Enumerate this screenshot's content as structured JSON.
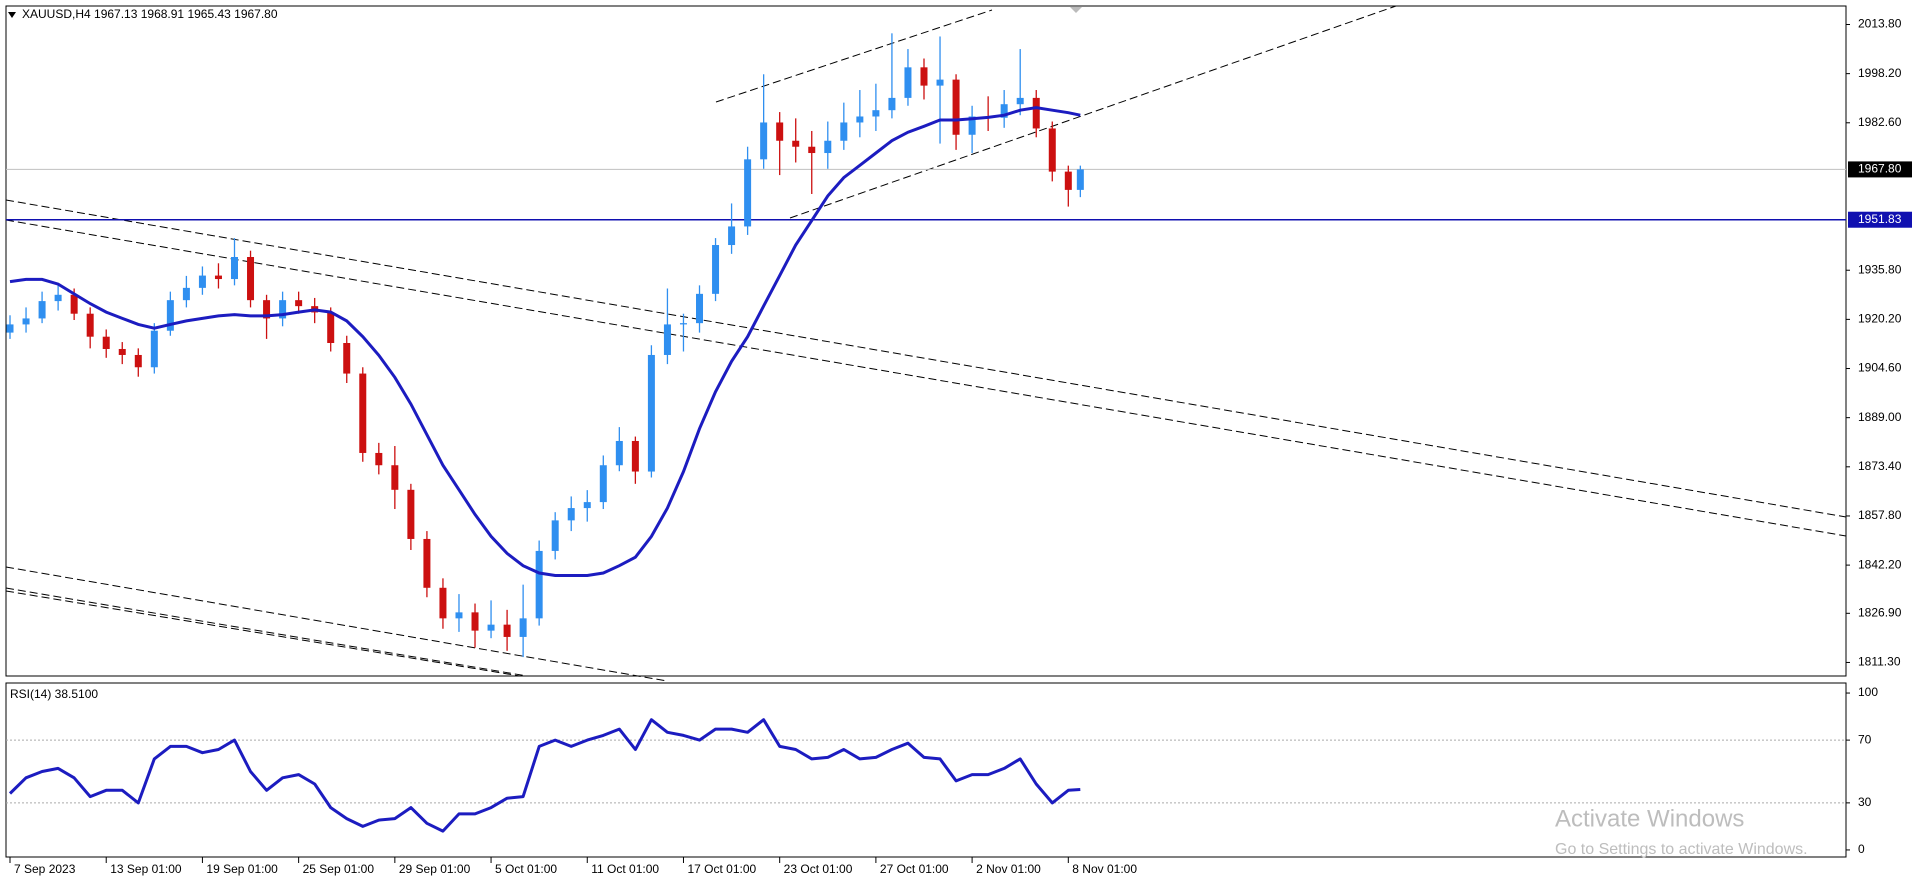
{
  "chart_data": [
    {
      "type": "candlestick",
      "title": "XAUUSD,H4  1967.13 1968.91 1965.43 1967.80",
      "x": [
        0,
        4,
        8,
        12,
        16,
        20,
        24,
        28,
        32,
        36,
        40,
        44,
        48,
        52,
        56,
        60,
        64,
        68,
        72,
        76,
        80,
        84,
        88,
        92,
        96,
        100,
        104,
        108,
        112,
        116,
        120,
        124,
        128,
        132,
        136,
        140,
        144,
        148,
        152,
        156,
        160,
        164,
        168,
        172,
        176,
        180,
        184,
        188,
        192,
        196,
        200,
        204,
        208,
        212,
        216,
        220,
        224,
        228,
        232,
        236,
        240,
        244,
        248,
        252,
        256,
        260,
        264,
        267
      ],
      "open": [
        1916,
        1918.6,
        1920.5,
        1926,
        1928,
        1922,
        1914.7,
        1910.8,
        1908.9,
        1905,
        1916.6,
        1926.3,
        1930.2,
        1934.1,
        1933,
        1940,
        1926.3,
        1920.5,
        1926.3,
        1924.4,
        1922.4,
        1912.7,
        1903,
        1877.8,
        1873.9,
        1866.1,
        1850.5,
        1835,
        1825.3,
        1827.2,
        1821.4,
        1823.3,
        1819.4,
        1825.3,
        1846.7,
        1856.4,
        1860.3,
        1862.2,
        1873.9,
        1881.6,
        1871.9,
        1908.9,
        1918.6,
        1919,
        1928.3,
        1943.8,
        1949.7,
        1971,
        1982.7,
        1976.9,
        1975,
        1973,
        1976.9,
        1982.7,
        1984.6,
        1986.6,
        1990.5,
        2000.2,
        1994.4,
        1996.3,
        1978.8,
        1984.6,
        1984.2,
        1988.5,
        1990.5,
        1980.8,
        1967.1,
        1961.3
      ],
      "high": [
        1921.5,
        1924,
        1929,
        1931,
        1930,
        1924,
        1917,
        1913,
        1911,
        1919,
        1929,
        1934,
        1937,
        1938,
        1946,
        1942,
        1928,
        1929,
        1929,
        1927,
        1924,
        1915,
        1905,
        1881,
        1880,
        1868,
        1853,
        1838,
        1833,
        1830,
        1831,
        1828,
        1836,
        1850,
        1859,
        1864,
        1866,
        1877,
        1886,
        1883,
        1912,
        1930,
        1922,
        1931,
        1946,
        1957,
        1975,
        1998,
        1986,
        1984,
        1980,
        1983,
        1989,
        1993,
        1995,
        2011,
        2006,
        2003,
        2010,
        1998,
        1988,
        1991,
        1993,
        2006,
        1993,
        1983,
        1969,
        1969
      ],
      "low": [
        1914,
        1916,
        1919,
        1923,
        1920,
        1911,
        1908,
        1906,
        1902,
        1903,
        1915,
        1924,
        1928,
        1930,
        1931,
        1924,
        1914,
        1918,
        1922,
        1919,
        1910,
        1900,
        1875,
        1871,
        1860,
        1847,
        1832,
        1822,
        1821,
        1816,
        1819,
        1815,
        1813,
        1823,
        1844,
        1853,
        1856,
        1860,
        1872,
        1868,
        1870,
        1906,
        1910,
        1916,
        1926,
        1941,
        1947,
        1968,
        1966,
        1970,
        1960,
        1968,
        1974,
        1978,
        1980,
        1984,
        1988,
        1990,
        1976,
        1974,
        1973,
        1980,
        1981,
        1985,
        1978,
        1964,
        1956,
        1959
      ],
      "close": [
        1918.6,
        1920.5,
        1926,
        1928,
        1922,
        1914.7,
        1910.8,
        1908.9,
        1905,
        1916.6,
        1926.3,
        1930.2,
        1934.1,
        1933,
        1940,
        1926.3,
        1920.5,
        1926.3,
        1924.4,
        1922.4,
        1912.7,
        1903,
        1877.8,
        1873.9,
        1866.1,
        1850.5,
        1835,
        1825.3,
        1827.2,
        1821.4,
        1823.3,
        1819.4,
        1825.3,
        1846.7,
        1856.4,
        1860.3,
        1862.2,
        1873.9,
        1881.6,
        1871.9,
        1908.9,
        1918.6,
        1919,
        1928.3,
        1943.8,
        1949.7,
        1971,
        1982.7,
        1976.9,
        1975,
        1973,
        1976.9,
        1982.7,
        1984.6,
        1986.6,
        1990.5,
        2000.2,
        1994.4,
        1996.3,
        1978.8,
        1984.6,
        1984.2,
        1988.5,
        1990.5,
        1980.8,
        1967.1,
        1961.3,
        1967.8
      ],
      "up_color": "#2f8ff0",
      "down_color": "#cc1010",
      "moving_average": {
        "color": "#1c1cc0",
        "values": [
          1932.2,
          1932.9,
          1932.9,
          1931.4,
          1928.3,
          1925.2,
          1922.5,
          1920.5,
          1918.6,
          1917.4,
          1918.6,
          1919.7,
          1920.5,
          1921.3,
          1921.7,
          1921.3,
          1921.3,
          1921.7,
          1922.5,
          1923.2,
          1922.5,
          1919.7,
          1914.7,
          1908.8,
          1901.8,
          1893.3,
          1883.6,
          1873.9,
          1866.1,
          1858.3,
          1851.3,
          1845.9,
          1842,
          1839.7,
          1838.9,
          1838.9,
          1838.9,
          1839.7,
          1842,
          1844.7,
          1851.3,
          1860.3,
          1871.9,
          1885.5,
          1897.2,
          1906.9,
          1914.7,
          1924.4,
          1934.1,
          1943.8,
          1951.6,
          1959.4,
          1965.2,
          1969.1,
          1973,
          1976.9,
          1979.6,
          1981.5,
          1983.5,
          1983.5,
          1983.9,
          1984.3,
          1985,
          1986.6,
          1987.4,
          1986.6,
          1985.8,
          1985
        ]
      },
      "horizontal_line": {
        "value": 1951.83,
        "color": "#1010b0"
      },
      "current_price": {
        "value": 1967.8,
        "label": "1967.80"
      },
      "xlim": [
        -1,
        458
      ],
      "xticks": [
        {
          "value": 0,
          "label": "7 Sep 2023"
        },
        {
          "value": 24,
          "label": "13 Sep 01:00"
        },
        {
          "value": 48,
          "label": "19 Sep 01:00"
        },
        {
          "value": 72,
          "label": "25 Sep 01:00"
        },
        {
          "value": 96,
          "label": "29 Sep 01:00"
        },
        {
          "value": 120,
          "label": "5 Oct 01:00"
        },
        {
          "value": 144,
          "label": "11 Oct 01:00"
        },
        {
          "value": 168,
          "label": "17 Oct 01:00"
        },
        {
          "value": 192,
          "label": "23 Oct 01:00"
        },
        {
          "value": 216,
          "label": "27 Oct 01:00"
        },
        {
          "value": 240,
          "label": "2 Nov 01:00"
        },
        {
          "value": 264,
          "label": "8 Nov 01:00"
        }
      ],
      "ylim": [
        1807.0,
        2019.67
      ],
      "yticks": [
        {
          "value": 2013.8,
          "label": "2013.80"
        },
        {
          "value": 1998.2,
          "label": "1998.20"
        },
        {
          "value": 1982.6,
          "label": "1982.60"
        },
        {
          "value": 1935.8,
          "label": "1935.80"
        },
        {
          "value": 1920.2,
          "label": "1920.20"
        },
        {
          "value": 1904.6,
          "label": "1904.60"
        },
        {
          "value": 1889.0,
          "label": "1889.00"
        },
        {
          "value": 1873.4,
          "label": "1873.40"
        },
        {
          "value": 1857.8,
          "label": "1857.80"
        },
        {
          "value": 1842.2,
          "label": "1842.20"
        },
        {
          "value": 1826.9,
          "label": "1826.90"
        },
        {
          "value": 1811.3,
          "label": "1811.30"
        }
      ]
    },
    {
      "type": "line",
      "title": "RSI(14) 38.5100",
      "x": [
        0,
        4,
        8,
        12,
        16,
        20,
        24,
        28,
        32,
        36,
        40,
        44,
        48,
        52,
        56,
        60,
        64,
        68,
        72,
        76,
        80,
        84,
        88,
        92,
        96,
        100,
        104,
        108,
        112,
        116,
        120,
        124,
        128,
        132,
        136,
        140,
        144,
        148,
        152,
        156,
        160,
        164,
        168,
        172,
        176,
        180,
        184,
        188,
        192,
        196,
        200,
        204,
        208,
        212,
        216,
        220,
        224,
        228,
        232,
        236,
        240,
        244,
        248,
        252,
        256,
        260,
        264,
        267
      ],
      "values": [
        36,
        46,
        50,
        52,
        46,
        34,
        38,
        38,
        30,
        58,
        66,
        66,
        62,
        64,
        70,
        50,
        38,
        46,
        48,
        42,
        27,
        20,
        15,
        19,
        20,
        27,
        17,
        12,
        23,
        23,
        27,
        33,
        34,
        66,
        70,
        66,
        70,
        73,
        77,
        64,
        83,
        75,
        73,
        70,
        77,
        77,
        75,
        83,
        66,
        64,
        58,
        59,
        64,
        58,
        59,
        64,
        68,
        59,
        58,
        44,
        48,
        48,
        52,
        58,
        42,
        30,
        38,
        38.51
      ],
      "color": "#1c1cc0",
      "xlim": [
        -1,
        458
      ],
      "ylim": [
        -4.5,
        106.4
      ],
      "yticks": [
        100,
        70,
        30,
        0
      ],
      "levels": [
        70,
        30
      ]
    }
  ],
  "watermark": {
    "title": "Activate Windows",
    "subtitle": "Go to Settings to activate Windows."
  }
}
